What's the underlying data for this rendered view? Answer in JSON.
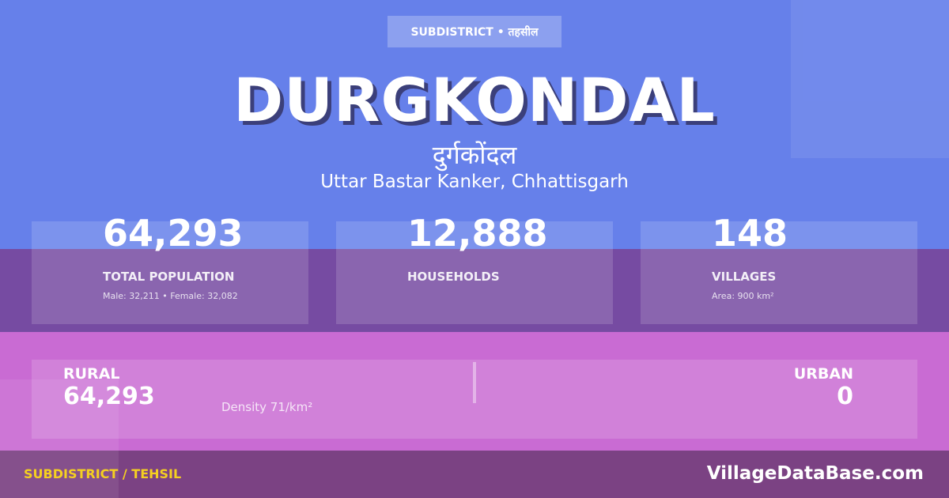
{
  "badge": "SUBDISTRICT • तहसील",
  "title": "DURGKONDAL",
  "title_hindi": "दुर्गकोंदल",
  "location": "Uttar Bastar Kanker, Chhattisgarh",
  "stats": [
    {
      "value": "64,293",
      "label": "TOTAL POPULATION",
      "sub": "Male: 32,211 • Female: 32,082"
    },
    {
      "value": "12,888",
      "label": "HOUSEHOLDS",
      "sub": ""
    },
    {
      "value": "148",
      "label": "VILLAGES",
      "sub": "Area: 900 km²"
    }
  ],
  "rural": {
    "label": "RURAL",
    "value": "64,293"
  },
  "urban": {
    "label": "URBAN",
    "value": "0"
  },
  "density": "Density 71/km²",
  "footer": {
    "type": "SUBDISTRICT / TEHSIL",
    "site": "VillageDataBase.com"
  },
  "colors": {
    "top": "#6680ea",
    "band": "#764ba2",
    "pink": "#c96bd3",
    "footer": "#7b4283",
    "accent": "#f5d020"
  }
}
